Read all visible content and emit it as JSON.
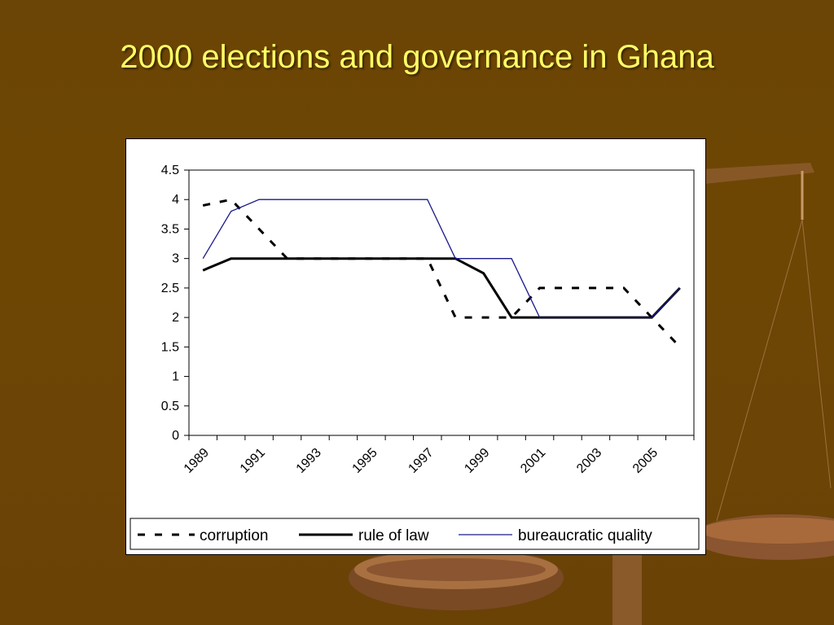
{
  "slide": {
    "title": "2000 elections and governance in Ghana"
  },
  "colors": {
    "background": "#6b4505",
    "title": "#ffff66",
    "corruption": "#000000",
    "rule_of_law": "#000000",
    "bureaucratic_quality": "#1a1a8c"
  },
  "chart_data": {
    "type": "line",
    "title": "",
    "xlabel": "",
    "ylabel": "",
    "x": [
      1989,
      1990,
      1991,
      1992,
      1993,
      1994,
      1995,
      1996,
      1997,
      1998,
      1999,
      2000,
      2001,
      2002,
      2003,
      2004,
      2005,
      2006
    ],
    "x_tick_labels": [
      "1989",
      "1991",
      "1993",
      "1995",
      "1997",
      "1999",
      "2001",
      "2003",
      "2005"
    ],
    "ylim": [
      0,
      4.5
    ],
    "y_ticks": [
      "0",
      "0.5",
      "1",
      "1.5",
      "2",
      "2.5",
      "3",
      "3.5",
      "4",
      "4.5"
    ],
    "grid": false,
    "legend_position": "bottom",
    "series": [
      {
        "name": "corruption",
        "style": "dashed",
        "values": [
          3.9,
          4.0,
          3.5,
          3.0,
          3.0,
          3.0,
          3.0,
          3.0,
          3.0,
          2.0,
          2.0,
          2.0,
          2.5,
          2.5,
          2.5,
          2.5,
          2.0,
          1.5
        ]
      },
      {
        "name": "rule of law",
        "style": "thick",
        "values": [
          2.8,
          3.0,
          3.0,
          3.0,
          3.0,
          3.0,
          3.0,
          3.0,
          3.0,
          3.0,
          2.75,
          2.0,
          2.0,
          2.0,
          2.0,
          2.0,
          2.0,
          2.5
        ]
      },
      {
        "name": "bureaucratic quality",
        "style": "thin",
        "values": [
          3.0,
          3.8,
          4.0,
          4.0,
          4.0,
          4.0,
          4.0,
          4.0,
          4.0,
          3.0,
          3.0,
          3.0,
          2.0,
          2.0,
          2.0,
          2.0,
          2.0,
          2.5
        ]
      }
    ]
  }
}
